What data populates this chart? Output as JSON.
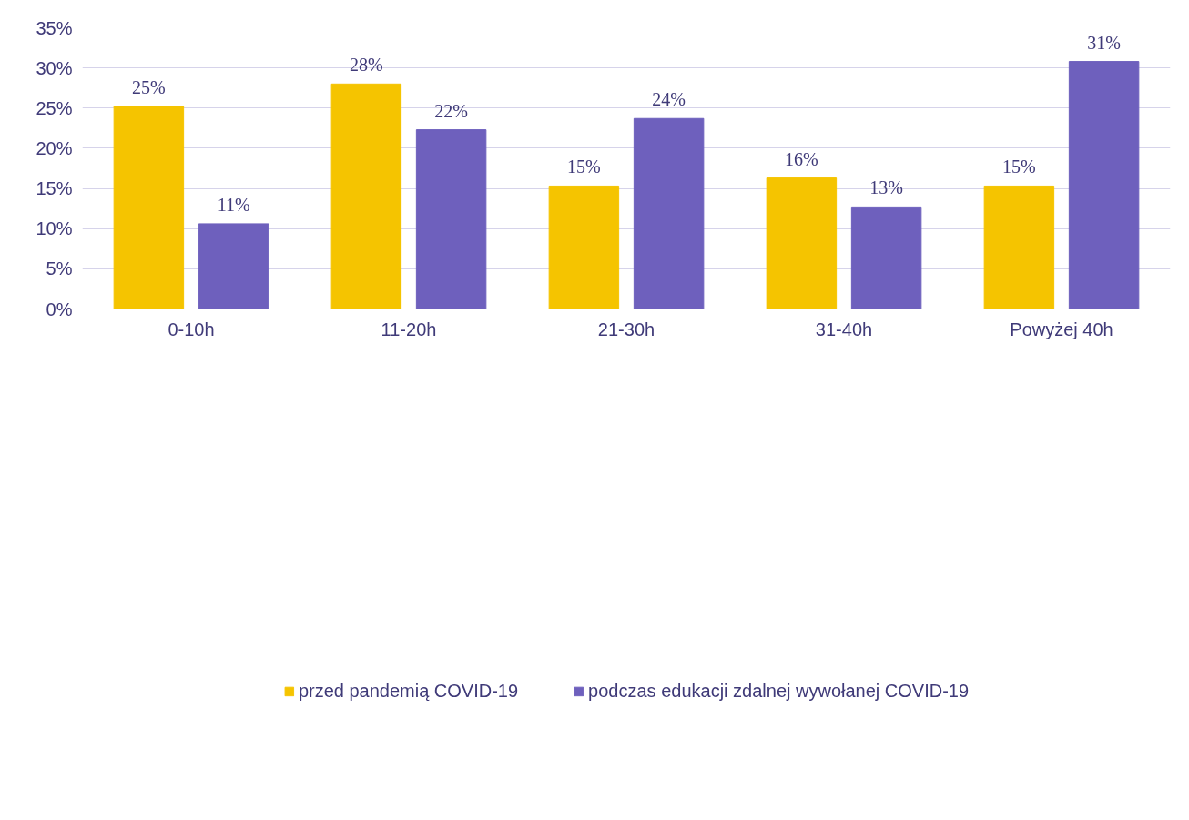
{
  "chart_data": {
    "type": "bar",
    "categories": [
      "0-10h",
      "11-20h",
      "21-30h",
      "31-40h",
      "Powyżej 40h"
    ],
    "series": [
      {
        "name": "przed pandemią COVID-19",
        "color": "#f5c400",
        "values": [
          25.2,
          28.0,
          15.3,
          16.3,
          15.3
        ],
        "value_labels": [
          "25%",
          "28%",
          "15%",
          "16%",
          "15%"
        ]
      },
      {
        "name": "podczas edukacji zdalnej wywołanej COVID-19",
        "color": "#6e60bd",
        "values": [
          10.6,
          22.3,
          23.7,
          12.7,
          30.8
        ],
        "value_labels": [
          "11%",
          "22%",
          "24%",
          "13%",
          "31%"
        ]
      }
    ],
    "ylim": [
      0,
      35
    ],
    "yticks": [
      {
        "value": 0,
        "label": "0%"
      },
      {
        "value": 5,
        "label": "5%"
      },
      {
        "value": 10,
        "label": "10%"
      },
      {
        "value": 15,
        "label": "15%"
      },
      {
        "value": 20,
        "label": "20%"
      },
      {
        "value": 25,
        "label": "25%"
      },
      {
        "value": 30,
        "label": "30%"
      },
      {
        "value": 35,
        "label": "35%"
      }
    ],
    "grid": "y",
    "legend": "bottom"
  }
}
